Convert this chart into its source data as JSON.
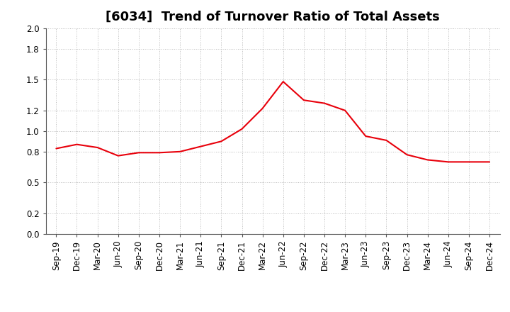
{
  "title": "[6034]  Trend of Turnover Ratio of Total Assets",
  "x_labels": [
    "Sep-19",
    "Dec-19",
    "Mar-20",
    "Jun-20",
    "Sep-20",
    "Dec-20",
    "Mar-21",
    "Jun-21",
    "Sep-21",
    "Dec-21",
    "Mar-22",
    "Jun-22",
    "Sep-22",
    "Dec-22",
    "Mar-23",
    "Jun-23",
    "Sep-23",
    "Dec-23",
    "Mar-24",
    "Jun-24",
    "Sep-24",
    "Dec-24"
  ],
  "y_values": [
    0.83,
    0.87,
    0.84,
    0.76,
    0.79,
    0.79,
    0.8,
    0.85,
    0.9,
    1.02,
    1.22,
    1.48,
    1.3,
    1.27,
    1.2,
    0.95,
    0.91,
    0.77,
    0.72,
    0.7,
    0.7,
    0.7
  ],
  "line_color": "#e8000b",
  "background_color": "#ffffff",
  "grid_color": "#bbbbbb",
  "ylim": [
    0.0,
    2.0
  ],
  "yticks": [
    0.0,
    0.2,
    0.5,
    0.8,
    1.0,
    1.2,
    1.5,
    1.8,
    2.0
  ],
  "title_fontsize": 13,
  "tick_fontsize": 8.5
}
